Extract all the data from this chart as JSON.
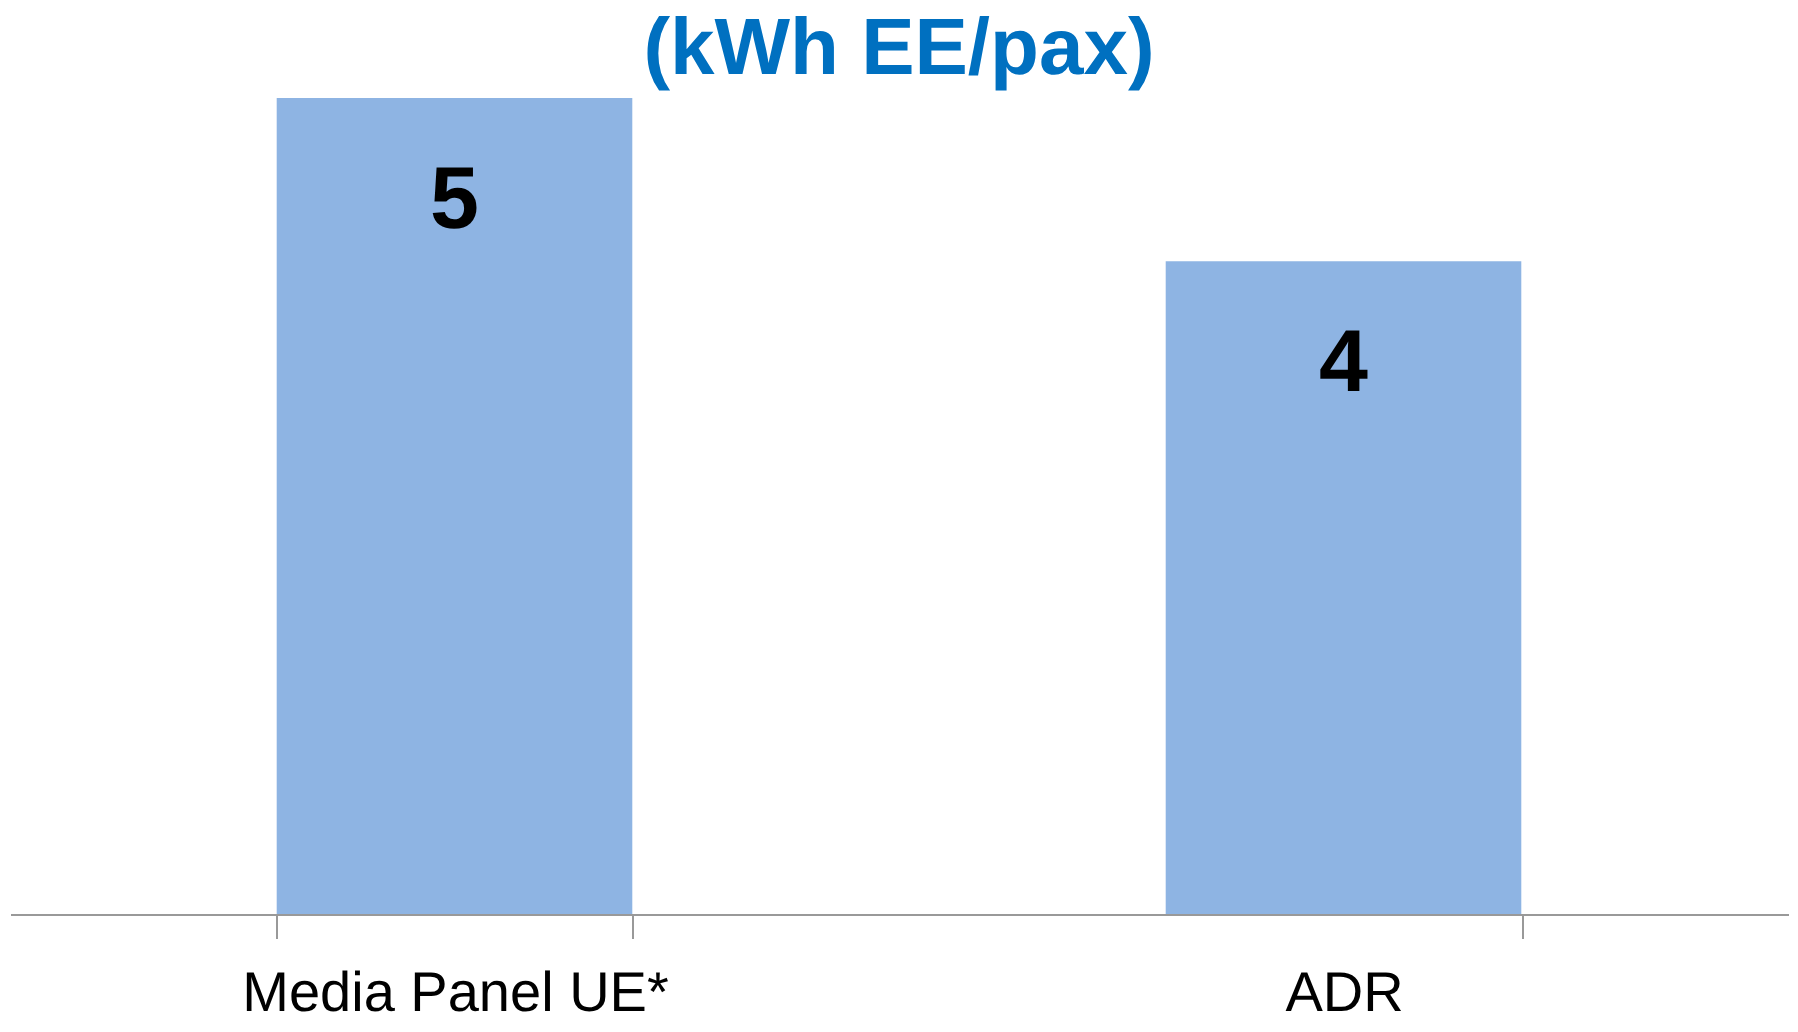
{
  "chart_data": {
    "type": "bar",
    "title": "(kWh EE/pax)",
    "categories": [
      "Media Panel UE*",
      "ADR"
    ],
    "values": [
      5,
      4
    ],
    "color": "#8eb4e3",
    "data_labels": true
  }
}
